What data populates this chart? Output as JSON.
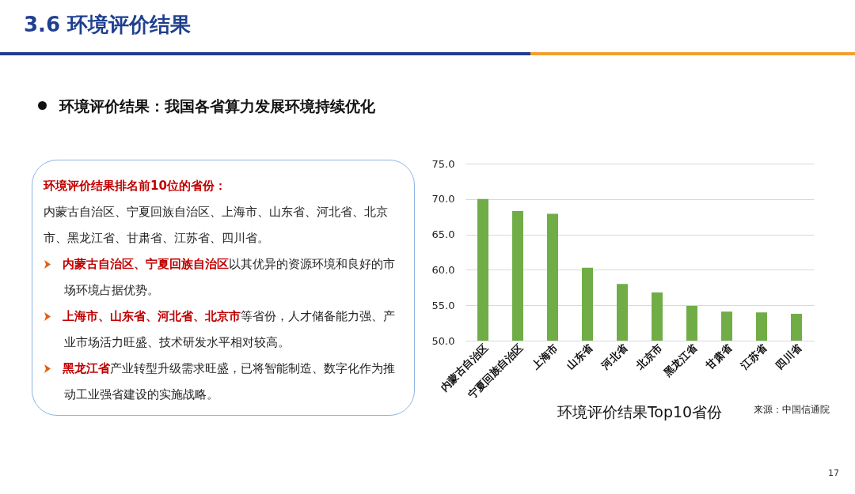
{
  "chart_data": [
    {
      "type": "other",
      "title": "3.6 环境评价结果",
      "subtitle": "环境评价结果：我国各省算力发展环境持续优化",
      "annotations": [
        "环境评价结果排名前10位的省份：",
        "内蒙古自治区、宁夏回族自治区、上海市、山东省、河北省、北京市、黑龙江省、甘肃省、江苏省、四川省。",
        "内蒙古自治区、宁夏回族自治区",
        "以其优异的资源环境和良好的市场环境占据优势。",
        "上海市、山东省、河北省、北京市",
        "等省份，人才储备能力强、产业市场活力旺盛、技术研发水平相对较高。",
        "黑龙江省",
        "产业转型升级需求旺盛，已将智能制造、数字化作为推动工业强省建设的实施战略。"
      ]
    },
    {
      "type": "bar",
      "title": "环境评价结果Top10省份",
      "categories": [
        "内蒙古自治区",
        "宁夏回族自治区",
        "上海市",
        "山东省",
        "河北省",
        "北京市",
        "黑龙江省",
        "甘肃省",
        "江苏省",
        "四川省"
      ],
      "values": [
        70.0,
        68.3,
        67.9,
        60.3,
        58.0,
        56.8,
        54.9,
        54.1,
        54.0,
        53.8
      ],
      "color": "#70ad47",
      "ylim": [
        50,
        75
      ],
      "yticks": [
        {
          "value": 50,
          "label": "50.0"
        },
        {
          "value": 55,
          "label": "55.0"
        },
        {
          "value": 60,
          "label": "60.0"
        },
        {
          "value": 65,
          "label": "65.0"
        },
        {
          "value": 70,
          "label": "70.0"
        },
        {
          "value": 75,
          "label": "75.0"
        }
      ],
      "grid": "y",
      "annotations": [
        "来源：中国信通院",
        "17"
      ]
    }
  ]
}
